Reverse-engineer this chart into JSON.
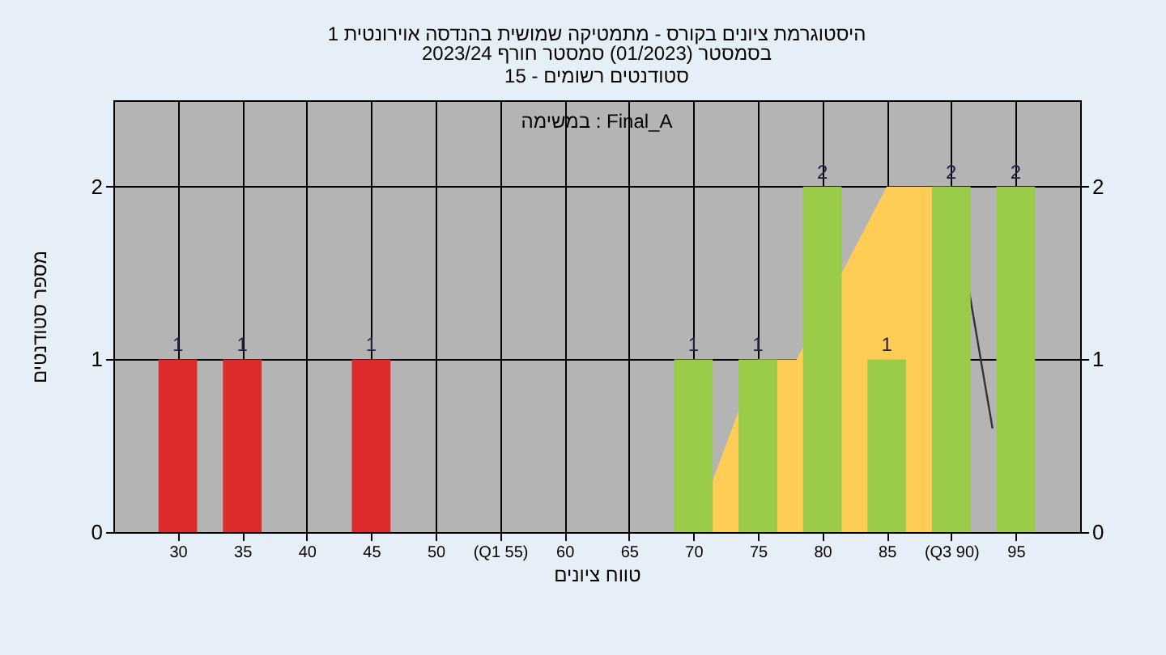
{
  "chart_data": {
    "type": "bar",
    "title": "היסטוגרמת ציונים בקורס - מתמטיקה שמושית בהנדסה אוירונטית 1",
    "subtitle": [
      "בסמסטר  (01/2023)  סמסטר חורף 2023/24",
      "סטודנטים רשומים - 15"
    ],
    "xlabel": "טווח ציונים",
    "ylabel": "מספר סטודנטים",
    "annotations": [
      "במשימה : Final_A"
    ],
    "series": [
      {
        "type": "area",
        "color": "#ffcc55",
        "x": [
          70,
          75,
          78,
          85,
          90
        ],
        "values": [
          0,
          1,
          1,
          2,
          2
        ]
      },
      {
        "type": "line",
        "color": "#333333",
        "x": [
          90,
          93.2
        ],
        "values": [
          2,
          0.6
        ]
      },
      {
        "type": "bar",
        "color": "#dd2a2a",
        "x": [
          30,
          35,
          45
        ],
        "values": [
          1,
          1,
          1
        ],
        "value_labels": [
          "1",
          "1",
          "1"
        ]
      },
      {
        "type": "bar",
        "color": "#9acb48",
        "x": [
          70,
          75,
          80,
          85,
          90,
          95
        ],
        "values": [
          1,
          1,
          2,
          1,
          2,
          2
        ],
        "value_labels": [
          "1",
          "1",
          "2",
          "1",
          "2",
          "2"
        ]
      }
    ],
    "xlim": [
      25,
      100
    ],
    "xticks": [
      30,
      35,
      40,
      45,
      50,
      {
        "value": 55,
        "label": "(Q1 55)"
      },
      60,
      65,
      70,
      75,
      80,
      85,
      {
        "value": 90,
        "label": "(Q3 90)"
      },
      95
    ],
    "ylim": [
      0,
      2.5
    ],
    "yticks": [
      0,
      1,
      2
    ],
    "y2lim": [
      0,
      2.5
    ],
    "y2ticks": [
      0,
      1,
      2
    ],
    "grid": true
  }
}
